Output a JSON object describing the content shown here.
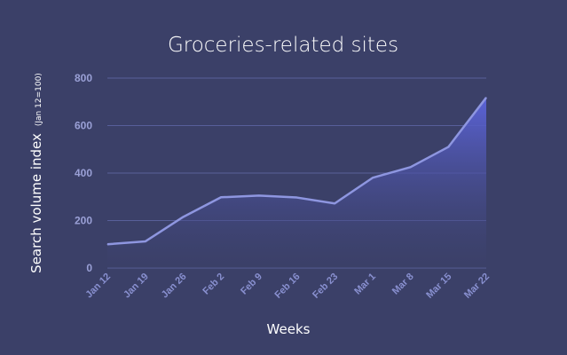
{
  "chart_data": {
    "type": "area",
    "title": "Groceries-related sites",
    "xlabel": "Weeks",
    "ylabel": "Search volume index",
    "ylabel_note": "(Jan 12=100)",
    "categories": [
      "Jan 12",
      "Jan 19",
      "Jan 26",
      "Feb 2",
      "Feb 9",
      "Feb 16",
      "Feb 23",
      "Mar 1",
      "Mar 8",
      "Mar 15",
      "Mar 22"
    ],
    "values": [
      100,
      112,
      215,
      298,
      305,
      297,
      272,
      380,
      425,
      510,
      718
    ],
    "ylim": [
      0,
      800
    ],
    "yticks": [
      0,
      200,
      400,
      600,
      800
    ],
    "grid": true,
    "legend": "none",
    "colors": {
      "background": "#3b4068",
      "line": "#8e96e0",
      "fill_top": "#5b63d8",
      "fill_bottom": "#3b4068",
      "grid": "#585f9a"
    }
  }
}
